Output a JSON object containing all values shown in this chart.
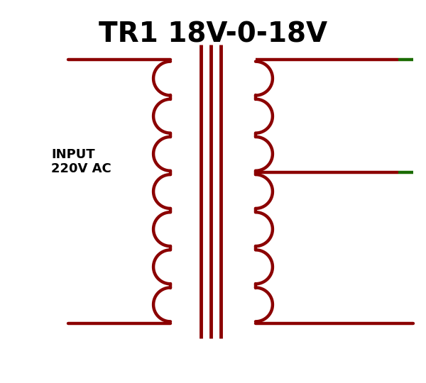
{
  "title": "TR1 18V-0-18V",
  "title_fontsize": 28,
  "input_label": "INPUT\n220V AC",
  "coil_color": "#8B0000",
  "core_color": "#8B0000",
  "wire_color": "#8B0000",
  "green_color": "#1a6b00",
  "bg_color": "#ffffff",
  "num_loops_primary": 7,
  "num_loops_secondary": 7,
  "lw": 3.2,
  "core_lw": 3.5
}
